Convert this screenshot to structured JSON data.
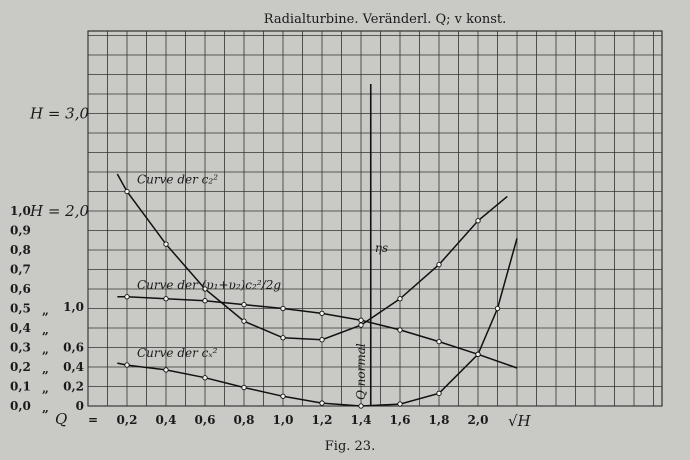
{
  "chart_data": {
    "type": "line",
    "title": "Radialturbine.  Veränderl. Q; v konst.",
    "caption": "Fig. 23.",
    "x_label_prefix": "Q",
    "x_label_eq": "=",
    "x_unit": "√H",
    "x_unit_sym": "H",
    "xlim": [
      0.05,
      2.35
    ],
    "x_ticks": [
      0,
      0.2,
      0.4,
      0.6,
      0.8,
      1.0,
      1.2,
      1.4,
      1.6,
      1.8,
      2.0
    ],
    "x_tick_labels": [
      "0,2",
      "0,4",
      "0,6",
      "0,8",
      "1,0",
      "1,2",
      "1,4",
      "1,6",
      "1,8",
      "2,0"
    ],
    "y_axes": [
      {
        "name": "H",
        "lim": [
          0,
          3.0
        ],
        "ticks": [
          0,
          0.2,
          0.4,
          0.6,
          1.0,
          2.0,
          3.0
        ],
        "tick_labels": [
          "0",
          "0,2",
          "0,4",
          "0,6",
          "1,0",
          "2,0",
          "3,0"
        ],
        "labelled": {
          "2.0": "H = 2,0",
          "3.0": "H = 3,0"
        }
      },
      {
        "name": "efficiency",
        "lim": [
          0,
          1.0
        ],
        "ticks": [
          0,
          0.1,
          0.2,
          0.3,
          0.4,
          0.5,
          0.6,
          0.7,
          0.8,
          0.9,
          1.0
        ],
        "tick_labels": [
          "0,0",
          "0,1",
          "0,2",
          "0,3",
          "0,4",
          "0,5",
          "0,6",
          "0,7",
          "0,8",
          "0,9",
          "1,0"
        ],
        "ditto_mark": "„"
      }
    ],
    "series": [
      {
        "label": "Curve der c₂²",
        "axis": "H",
        "x": [
          0.15,
          0.2,
          0.4,
          0.6,
          0.8,
          1.0,
          1.2,
          1.4,
          1.6,
          1.8,
          2.0,
          2.15
        ],
        "y": [
          2.38,
          2.2,
          1.66,
          1.2,
          0.87,
          0.7,
          0.68,
          0.83,
          1.1,
          1.45,
          1.9,
          2.15
        ]
      },
      {
        "label": "Curve der (υ₁+υ₂)c₂²/2g",
        "axis": "H",
        "x": [
          0.15,
          0.2,
          0.4,
          0.6,
          0.8,
          1.0,
          1.2,
          1.4,
          1.6,
          1.8,
          2.0,
          2.2
        ],
        "y": [
          1.12,
          1.12,
          1.1,
          1.08,
          1.04,
          1.0,
          0.95,
          0.88,
          0.78,
          0.66,
          0.53,
          0.39
        ]
      },
      {
        "label": "Curve der cₓ²",
        "axis": "H",
        "x": [
          0.15,
          0.2,
          0.4,
          0.6,
          0.8,
          1.0,
          1.2,
          1.4,
          1.6,
          1.8,
          2.0,
          2.1,
          2.2
        ],
        "y": [
          0.44,
          0.42,
          0.37,
          0.29,
          0.19,
          0.1,
          0.03,
          0.0,
          0.02,
          0.13,
          0.53,
          1.0,
          1.72
        ]
      }
    ],
    "annotations": [
      {
        "text": "Q normal",
        "x": 1.45
      },
      {
        "text": "ηs",
        "x": 1.45
      }
    ]
  }
}
